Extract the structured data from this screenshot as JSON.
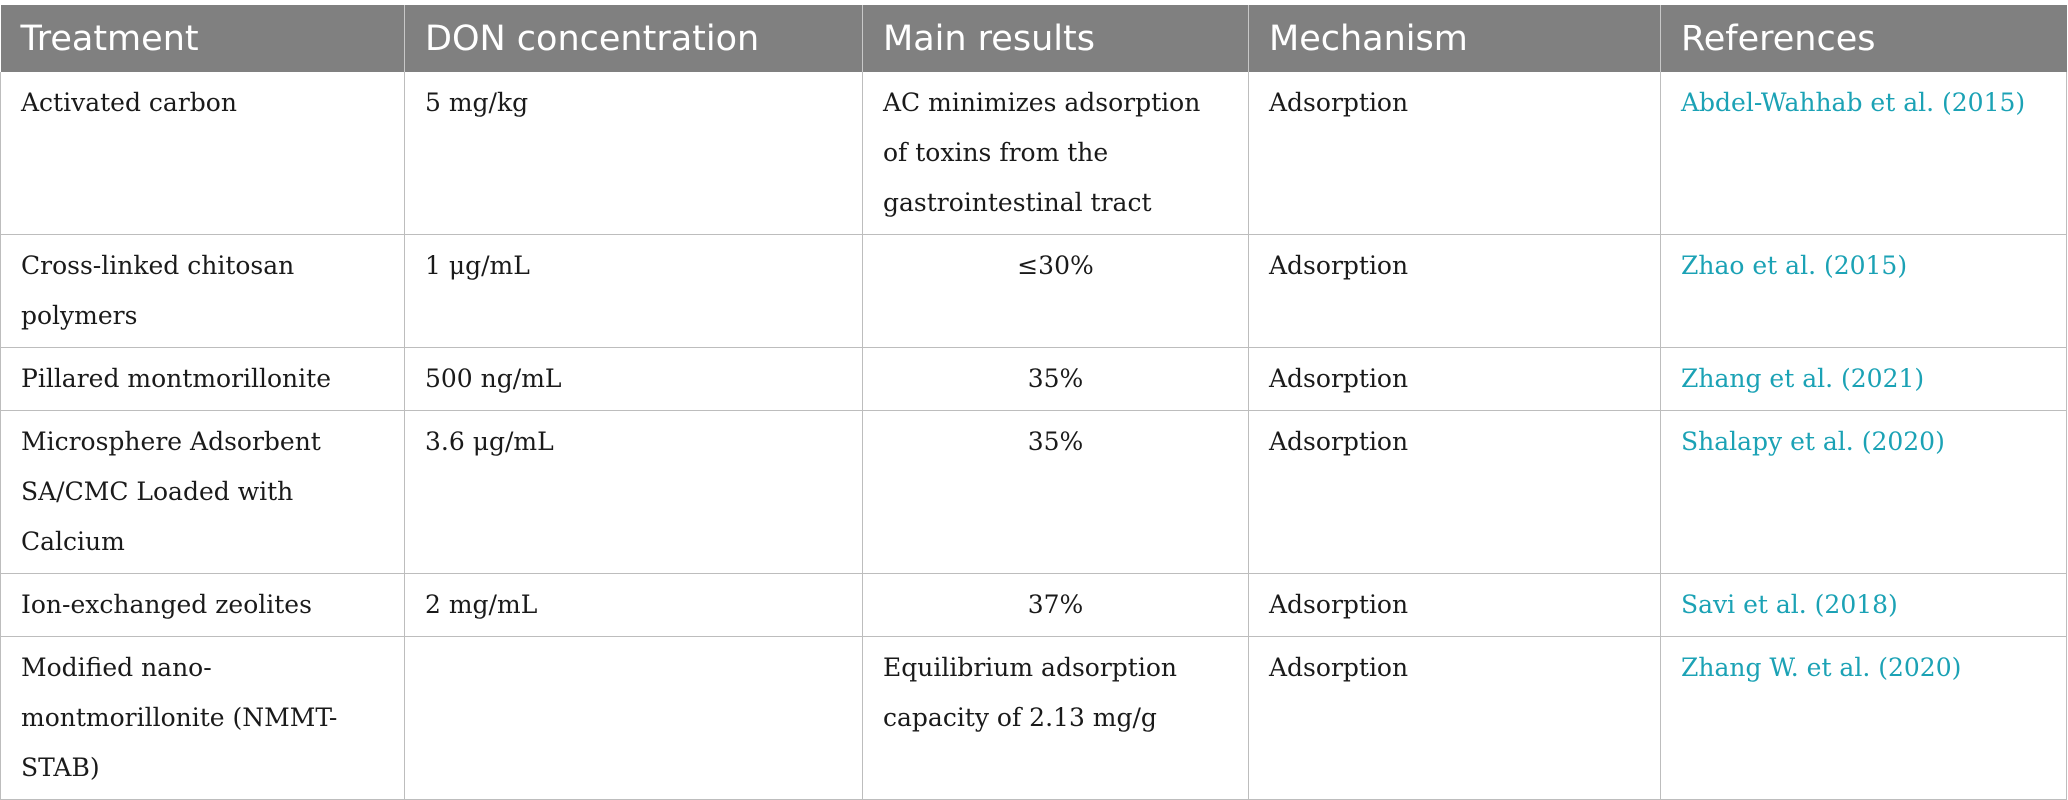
{
  "headers": [
    "Treatment",
    "DON concentration",
    "Main results",
    "Mechanism",
    "References"
  ],
  "rows": [
    {
      "treatment": "Activated carbon",
      "concentration": "5 mg/kg",
      "results": "AC minimizes adsorption of toxins from the gastrointestinal tract",
      "mechanism": "Adsorption",
      "reference": "Abdel-Wahhab et al. (2015)"
    },
    {
      "treatment": "Cross-linked chitosan polymers",
      "concentration": "1 μg/mL",
      "results": "≤30%",
      "mechanism": "Adsorption",
      "reference": "Zhao et al. (2015)"
    },
    {
      "treatment": "Pillared montmorillonite",
      "concentration": "500 ng/mL",
      "results": "35%",
      "mechanism": "Adsorption",
      "reference": "Zhang et al. (2021)"
    },
    {
      "treatment": "Microsphere Adsorbent SA/CMC Loaded with Calcium",
      "concentration": "3.6 μg/mL",
      "results": "35%",
      "mechanism": "Adsorption",
      "reference": "Shalapy et al. (2020)"
    },
    {
      "treatment": "Ion-exchanged zeolites",
      "concentration": "2 mg/mL",
      "results": "37%",
      "mechanism": "Adsorption",
      "reference": "Savi et al. (2018)"
    },
    {
      "treatment": "Modified nano-montmorillonite (NMMT-STAB)",
      "concentration": "",
      "results": "Equilibrium adsorption capacity of 2.13 mg/g",
      "mechanism": "Adsorption",
      "reference": "Zhang W. et al. (2020)"
    }
  ],
  "colors": {
    "header_bg": "#808080",
    "header_text": "#ffffff",
    "link": "#1ba2b5",
    "border": "#bdbdbd"
  }
}
